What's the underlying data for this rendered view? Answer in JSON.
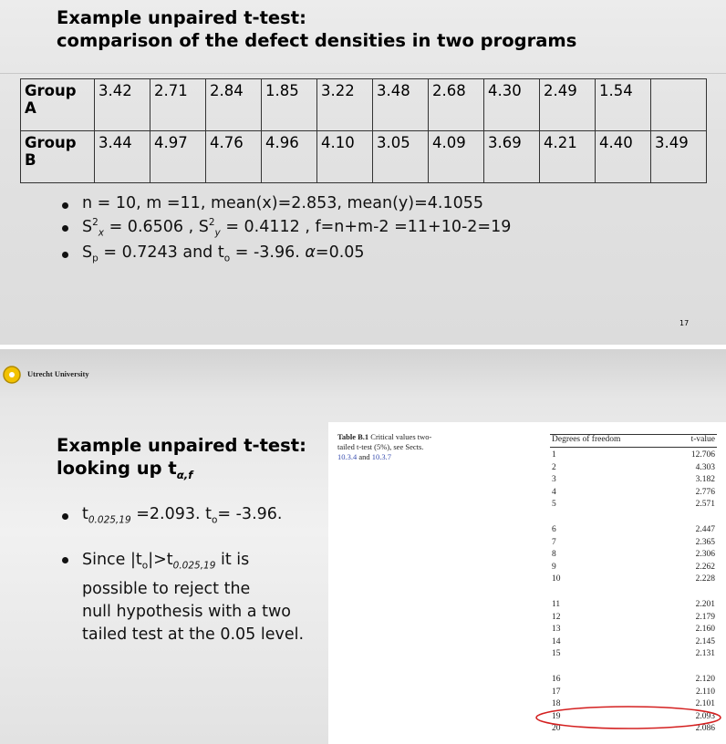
{
  "slide1": {
    "title": [
      "Example unpaired t-test:",
      "comparison of the defect densities in two programs"
    ],
    "table": {
      "rows": [
        {
          "label": "Group A",
          "values": [
            "3.42",
            "2.71",
            "2.84",
            "1.85",
            "3.22",
            "3.48",
            "2.68",
            "4.30",
            "2.49",
            "1.54"
          ]
        },
        {
          "label": "Group B",
          "values": [
            "3.44",
            "4.97",
            "4.76",
            "4.96",
            "4.10",
            "3.05",
            "4.09",
            "3.69",
            "4.21",
            "4.40",
            "3.49"
          ]
        }
      ]
    },
    "bullets": [
      [
        "n = 10, m =11, mean(x)=2.853, mean(y)=4.1055"
      ],
      [
        "S",
        "2",
        "x",
        " = 0.6506 , S",
        "2",
        "y",
        " = 0.4112 , f=n+m-2 =11+10-2=19"
      ],
      [
        "S",
        "p",
        " = 0.7243 and t",
        "o",
        " = -3.96. ",
        "α",
        "=0.05"
      ]
    ],
    "page_number": "17"
  },
  "slide2": {
    "logo": "Utrecht University",
    "title": {
      "lines": [
        "Example unpaired t-test:",
        "looking up t"
      ],
      "subscript": "α,f"
    },
    "bullets": [
      [
        "t",
        "0.025,19",
        " =2.093. t",
        "o",
        "= -3.96."
      ],
      [
        "Since |t",
        "o",
        "|>t",
        "0.025,19",
        " it is"
      ]
    ],
    "bullet2_lines": [
      "possible to reject the",
      "null hypothesis with a two",
      "tailed test at the 0.05 level."
    ],
    "table_caption": {
      "label": "Table B.1",
      "text": "Critical values two-tailed t-test (5%), see Sects.",
      "ref1": "10.3.4",
      "and": "and",
      "ref2": "10.3.7"
    },
    "critical_table": {
      "headers": [
        "Degrees of freedom",
        "t-value"
      ],
      "rows": [
        [
          "1",
          "12.706"
        ],
        [
          "2",
          "4.303"
        ],
        [
          "3",
          "3.182"
        ],
        [
          "4",
          "2.776"
        ],
        [
          "5",
          "2.571"
        ],
        [
          "6",
          "2.447"
        ],
        [
          "7",
          "2.365"
        ],
        [
          "8",
          "2.306"
        ],
        [
          "9",
          "2.262"
        ],
        [
          "10",
          "2.228"
        ],
        [
          "11",
          "2.201"
        ],
        [
          "12",
          "2.179"
        ],
        [
          "13",
          "2.160"
        ],
        [
          "14",
          "2.145"
        ],
        [
          "15",
          "2.131"
        ],
        [
          "16",
          "2.120"
        ],
        [
          "17",
          "2.110"
        ],
        [
          "18",
          "2.101"
        ],
        [
          "19",
          "2.093"
        ],
        [
          "20",
          "2.086"
        ]
      ]
    }
  }
}
